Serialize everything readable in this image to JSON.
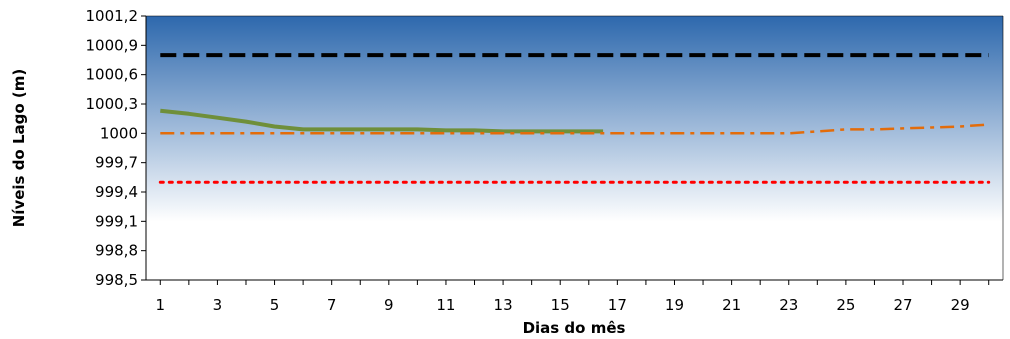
{
  "chart_data": {
    "type": "line",
    "title": "",
    "xlabel": "Dias do mês",
    "ylabel": "Níveis do Lago (m)",
    "xlim": [
      0.5,
      30.5
    ],
    "ylim": [
      998.5,
      1001.2
    ],
    "y_ticks": [
      "998,5",
      "998,8",
      "999,1",
      "999,4",
      "999,7",
      "1000",
      "1000,3",
      "1000,6",
      "1000,9",
      "1001,2"
    ],
    "x_ticks": [
      1,
      3,
      5,
      7,
      9,
      11,
      13,
      15,
      17,
      19,
      21,
      23,
      25,
      27,
      29
    ],
    "background_gradient": [
      "#2d68ad",
      "#ffffff"
    ],
    "grid": false,
    "legend": "none",
    "series": [
      {
        "style": "dashed",
        "color": "#000000",
        "x": [
          1,
          30
        ],
        "y": [
          1000.8,
          1000.8
        ]
      },
      {
        "style": "solid",
        "color": "#6f8f3a",
        "x": [
          1,
          2,
          3,
          4,
          5,
          6,
          7,
          8,
          9,
          10,
          11,
          12,
          13,
          14,
          15,
          16,
          16.5
        ],
        "y": [
          1000.23,
          1000.2,
          1000.16,
          1000.12,
          1000.07,
          1000.04,
          1000.04,
          1000.04,
          1000.04,
          1000.04,
          1000.03,
          1000.03,
          1000.02,
          1000.02,
          1000.02,
          1000.02,
          1000.02
        ]
      },
      {
        "style": "dashdot",
        "color": "#e36c0a",
        "x": [
          1,
          5,
          10,
          15,
          20,
          23,
          24,
          25,
          26,
          27,
          28,
          29,
          30
        ],
        "y": [
          1000.0,
          1000.0,
          1000.0,
          1000.0,
          1000.0,
          1000.0,
          1000.02,
          1000.04,
          1000.04,
          1000.05,
          1000.06,
          1000.07,
          1000.09
        ]
      },
      {
        "style": "dotted",
        "color": "#ff0000",
        "x": [
          1,
          30
        ],
        "y": [
          999.5,
          999.5
        ]
      }
    ]
  }
}
